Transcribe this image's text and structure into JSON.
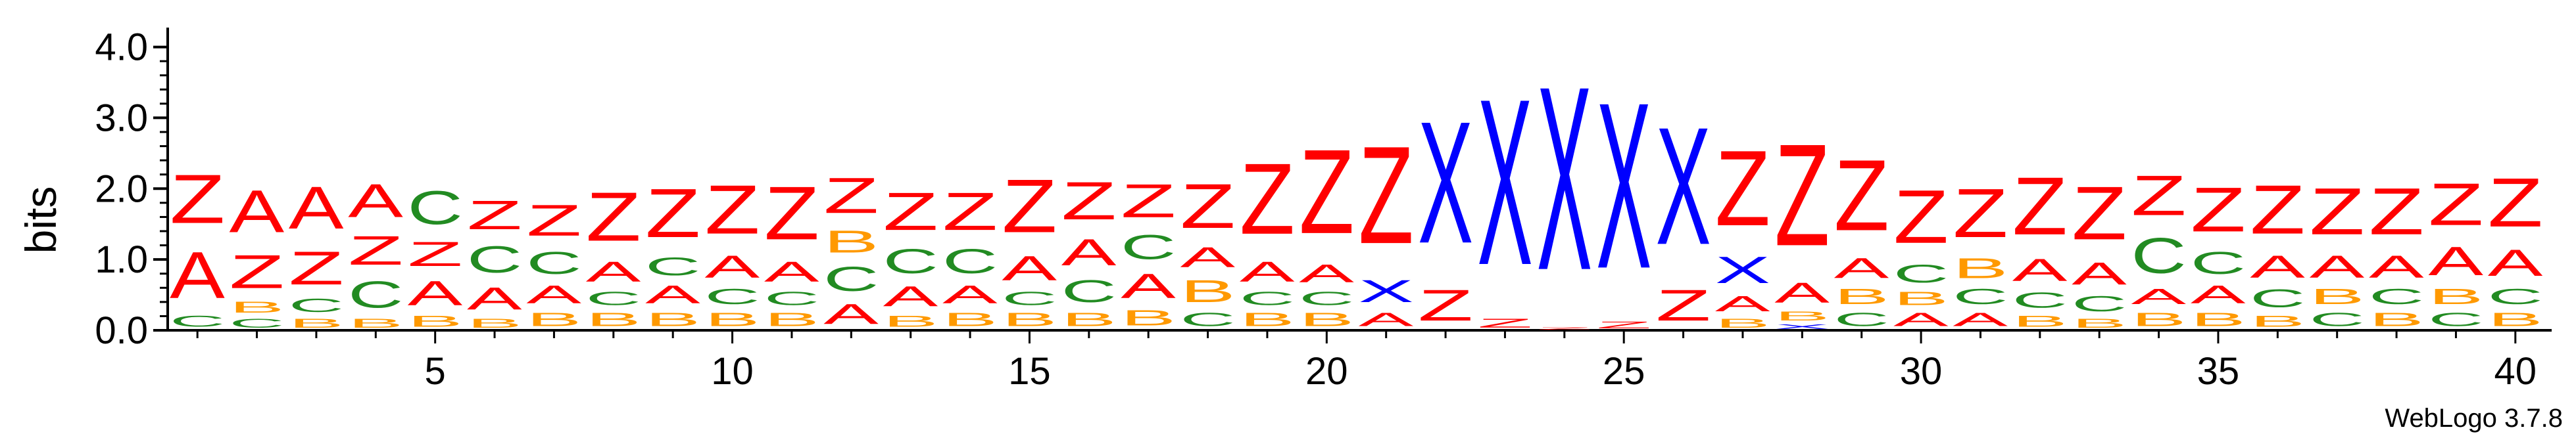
{
  "colors": {
    "A": "#ff0000",
    "Z": "#ff0000",
    "C": "#228b22",
    "B": "#ff9900",
    "X": "#0000ff",
    "axis": "#000000"
  },
  "chart_data": {
    "type": "sequence-logo",
    "ylabel": "bits",
    "ylim": [
      0,
      4.2
    ],
    "yticks": [
      "0.0",
      "1.0",
      "2.0",
      "3.0",
      "4.0"
    ],
    "xticks": [
      5,
      10,
      15,
      20,
      25,
      30,
      35,
      40
    ],
    "positions": [
      {
        "x": 1,
        "stack": [
          {
            "l": "C",
            "h": 0.25
          },
          {
            "l": "A",
            "h": 1.05
          },
          {
            "l": "Z",
            "h": 1.1
          }
        ]
      },
      {
        "x": 2,
        "stack": [
          {
            "l": "C",
            "h": 0.2
          },
          {
            "l": "B",
            "h": 0.25
          },
          {
            "l": "Z",
            "h": 0.75
          },
          {
            "l": "A",
            "h": 0.95
          }
        ]
      },
      {
        "x": 3,
        "stack": [
          {
            "l": "B",
            "h": 0.2
          },
          {
            "l": "C",
            "h": 0.3
          },
          {
            "l": "Z",
            "h": 0.75
          },
          {
            "l": "A",
            "h": 0.95
          }
        ]
      },
      {
        "x": 4,
        "stack": [
          {
            "l": "B",
            "h": 0.2
          },
          {
            "l": "C",
            "h": 0.6
          },
          {
            "l": "Z",
            "h": 0.65
          },
          {
            "l": "A",
            "h": 0.75
          }
        ]
      },
      {
        "x": 5,
        "stack": [
          {
            "l": "B",
            "h": 0.25
          },
          {
            "l": "A",
            "h": 0.55
          },
          {
            "l": "Z",
            "h": 0.55
          },
          {
            "l": "C",
            "h": 0.75
          }
        ]
      },
      {
        "x": 6,
        "stack": [
          {
            "l": "B",
            "h": 0.2
          },
          {
            "l": "A",
            "h": 0.5
          },
          {
            "l": "C",
            "h": 0.6
          },
          {
            "l": "Z",
            "h": 0.65
          }
        ]
      },
      {
        "x": 7,
        "stack": [
          {
            "l": "B",
            "h": 0.3
          },
          {
            "l": "A",
            "h": 0.4
          },
          {
            "l": "C",
            "h": 0.5
          },
          {
            "l": "Z",
            "h": 0.7
          }
        ]
      },
      {
        "x": 8,
        "stack": [
          {
            "l": "B",
            "h": 0.3
          },
          {
            "l": "C",
            "h": 0.3
          },
          {
            "l": "A",
            "h": 0.45
          },
          {
            "l": "Z",
            "h": 1.1
          }
        ]
      },
      {
        "x": 9,
        "stack": [
          {
            "l": "B",
            "h": 0.3
          },
          {
            "l": "A",
            "h": 0.4
          },
          {
            "l": "C",
            "h": 0.4
          },
          {
            "l": "Z",
            "h": 1.1
          }
        ]
      },
      {
        "x": 10,
        "stack": [
          {
            "l": "B",
            "h": 0.3
          },
          {
            "l": "C",
            "h": 0.35
          },
          {
            "l": "A",
            "h": 0.5
          },
          {
            "l": "Z",
            "h": 1.1
          }
        ]
      },
      {
        "x": 11,
        "stack": [
          {
            "l": "B",
            "h": 0.3
          },
          {
            "l": "C",
            "h": 0.3
          },
          {
            "l": "A",
            "h": 0.45
          },
          {
            "l": "Z",
            "h": 1.2
          }
        ]
      },
      {
        "x": 12,
        "stack": [
          {
            "l": "A",
            "h": 0.45
          },
          {
            "l": "C",
            "h": 0.55
          },
          {
            "l": "B",
            "h": 0.5
          },
          {
            "l": "Z",
            "h": 0.8
          }
        ]
      },
      {
        "x": 13,
        "stack": [
          {
            "l": "B",
            "h": 0.25
          },
          {
            "l": "A",
            "h": 0.45
          },
          {
            "l": "C",
            "h": 0.55
          },
          {
            "l": "Z",
            "h": 0.85
          }
        ]
      },
      {
        "x": 14,
        "stack": [
          {
            "l": "B",
            "h": 0.3
          },
          {
            "l": "A",
            "h": 0.4
          },
          {
            "l": "C",
            "h": 0.55
          },
          {
            "l": "Z",
            "h": 0.85
          }
        ]
      },
      {
        "x": 15,
        "stack": [
          {
            "l": "B",
            "h": 0.3
          },
          {
            "l": "C",
            "h": 0.3
          },
          {
            "l": "A",
            "h": 0.55
          },
          {
            "l": "Z",
            "h": 1.2
          }
        ]
      },
      {
        "x": 16,
        "stack": [
          {
            "l": "B",
            "h": 0.3
          },
          {
            "l": "C",
            "h": 0.5
          },
          {
            "l": "A",
            "h": 0.6
          },
          {
            "l": "Z",
            "h": 0.85
          }
        ]
      },
      {
        "x": 17,
        "stack": [
          {
            "l": "B",
            "h": 0.35
          },
          {
            "l": "A",
            "h": 0.55
          },
          {
            "l": "C",
            "h": 0.55
          },
          {
            "l": "Z",
            "h": 0.75
          }
        ]
      },
      {
        "x": 18,
        "stack": [
          {
            "l": "C",
            "h": 0.3
          },
          {
            "l": "B",
            "h": 0.5
          },
          {
            "l": "A",
            "h": 0.45
          },
          {
            "l": "Z",
            "h": 1.0
          }
        ]
      },
      {
        "x": 19,
        "stack": [
          {
            "l": "B",
            "h": 0.3
          },
          {
            "l": "C",
            "h": 0.3
          },
          {
            "l": "A",
            "h": 0.45
          },
          {
            "l": "Z",
            "h": 1.6
          }
        ]
      },
      {
        "x": 20,
        "stack": [
          {
            "l": "B",
            "h": 0.3
          },
          {
            "l": "C",
            "h": 0.3
          },
          {
            "l": "A",
            "h": 0.4
          },
          {
            "l": "Z",
            "h": 1.9
          }
        ]
      },
      {
        "x": 21,
        "stack": [
          {
            "l": "A",
            "h": 0.3
          },
          {
            "l": "X",
            "h": 0.5
          },
          {
            "l": "Z",
            "h": 2.2
          }
        ]
      },
      {
        "x": 22,
        "stack": [
          {
            "l": "Z",
            "h": 0.7
          },
          {
            "l": "X",
            "h": 2.75
          }
        ]
      },
      {
        "x": 23,
        "stack": [
          {
            "l": "Z",
            "h": 0.2
          },
          {
            "l": "X",
            "h": 3.75
          }
        ]
      },
      {
        "x": 24,
        "stack": [
          {
            "l": "Z",
            "h": 0.05
          },
          {
            "l": "X",
            "h": 4.15
          }
        ]
      },
      {
        "x": 25,
        "stack": [
          {
            "l": "Z",
            "h": 0.15
          },
          {
            "l": "X",
            "h": 3.75
          }
        ]
      },
      {
        "x": 26,
        "stack": [
          {
            "l": "Z",
            "h": 0.7
          },
          {
            "l": "X",
            "h": 2.65
          }
        ]
      },
      {
        "x": 27,
        "stack": [
          {
            "l": "B",
            "h": 0.2
          },
          {
            "l": "A",
            "h": 0.35
          },
          {
            "l": "X",
            "h": 0.6
          },
          {
            "l": "Z",
            "h": 1.7
          }
        ]
      },
      {
        "x": 28,
        "stack": [
          {
            "l": "X",
            "h": 0.1
          },
          {
            "l": "B",
            "h": 0.2
          },
          {
            "l": "A",
            "h": 0.45
          },
          {
            "l": "Z",
            "h": 2.3
          }
        ]
      },
      {
        "x": 29,
        "stack": [
          {
            "l": "C",
            "h": 0.3
          },
          {
            "l": "B",
            "h": 0.35
          },
          {
            "l": "A",
            "h": 0.45
          },
          {
            "l": "Z",
            "h": 1.6
          }
        ]
      },
      {
        "x": 30,
        "stack": [
          {
            "l": "A",
            "h": 0.3
          },
          {
            "l": "B",
            "h": 0.3
          },
          {
            "l": "C",
            "h": 0.4
          },
          {
            "l": "Z",
            "h": 1.2
          }
        ]
      },
      {
        "x": 31,
        "stack": [
          {
            "l": "A",
            "h": 0.3
          },
          {
            "l": "C",
            "h": 0.35
          },
          {
            "l": "B",
            "h": 0.45
          },
          {
            "l": "Z",
            "h": 1.1
          }
        ]
      },
      {
        "x": 32,
        "stack": [
          {
            "l": "B",
            "h": 0.25
          },
          {
            "l": "C",
            "h": 0.35
          },
          {
            "l": "A",
            "h": 0.5
          },
          {
            "l": "Z",
            "h": 1.3
          }
        ]
      },
      {
        "x": 33,
        "stack": [
          {
            "l": "B",
            "h": 0.2
          },
          {
            "l": "C",
            "h": 0.35
          },
          {
            "l": "A",
            "h": 0.5
          },
          {
            "l": "Z",
            "h": 1.2
          }
        ]
      },
      {
        "x": 34,
        "stack": [
          {
            "l": "B",
            "h": 0.3
          },
          {
            "l": "A",
            "h": 0.35
          },
          {
            "l": "C",
            "h": 0.8
          },
          {
            "l": "Z",
            "h": 0.9
          }
        ]
      },
      {
        "x": 35,
        "stack": [
          {
            "l": "B",
            "h": 0.3
          },
          {
            "l": "A",
            "h": 0.4
          },
          {
            "l": "C",
            "h": 0.5
          },
          {
            "l": "Z",
            "h": 1.0
          }
        ]
      },
      {
        "x": 36,
        "stack": [
          {
            "l": "B",
            "h": 0.25
          },
          {
            "l": "C",
            "h": 0.4
          },
          {
            "l": "A",
            "h": 0.5
          },
          {
            "l": "Z",
            "h": 1.1
          }
        ]
      },
      {
        "x": 37,
        "stack": [
          {
            "l": "C",
            "h": 0.3
          },
          {
            "l": "B",
            "h": 0.35
          },
          {
            "l": "A",
            "h": 0.5
          },
          {
            "l": "Z",
            "h": 1.05
          }
        ]
      },
      {
        "x": 38,
        "stack": [
          {
            "l": "B",
            "h": 0.3
          },
          {
            "l": "C",
            "h": 0.35
          },
          {
            "l": "A",
            "h": 0.5
          },
          {
            "l": "Z",
            "h": 1.05
          }
        ]
      },
      {
        "x": 39,
        "stack": [
          {
            "l": "C",
            "h": 0.3
          },
          {
            "l": "B",
            "h": 0.35
          },
          {
            "l": "A",
            "h": 0.65
          },
          {
            "l": "Z",
            "h": 0.95
          }
        ]
      },
      {
        "x": 40,
        "stack": [
          {
            "l": "B",
            "h": 0.3
          },
          {
            "l": "C",
            "h": 0.35
          },
          {
            "l": "A",
            "h": 0.6
          },
          {
            "l": "Z",
            "h": 1.1
          }
        ]
      }
    ],
    "credit": "WebLogo 3.7.8"
  }
}
